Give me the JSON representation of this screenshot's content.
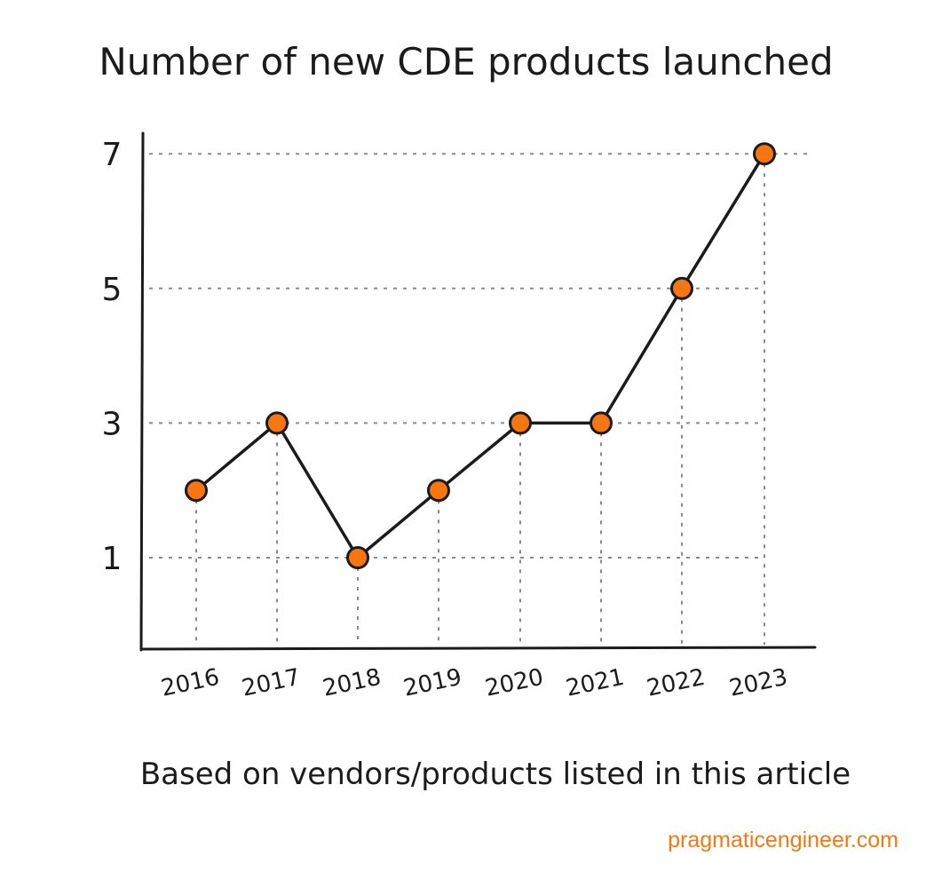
{
  "chart_data": {
    "type": "line",
    "title": "Number of new CDE products launched",
    "categories": [
      "2016",
      "2017",
      "2018",
      "2019",
      "2020",
      "2021",
      "2022",
      "2023"
    ],
    "series": [
      {
        "values": [
          2,
          3,
          1,
          2,
          3,
          3,
          5,
          7
        ]
      }
    ],
    "y_ticks": [
      "1",
      "3",
      "5",
      "7"
    ],
    "ylim": [
      0,
      7.3
    ],
    "grid": "dotted guide lines to each point",
    "colors": {
      "point_fill": "#f7760f",
      "line": "#1b1b1b",
      "grid": "#8a8a8a"
    }
  },
  "footer": {
    "note": "Based on vendors/products listed in this article",
    "source": "pragmaticengineer.com",
    "source_color": "#f07a12"
  }
}
